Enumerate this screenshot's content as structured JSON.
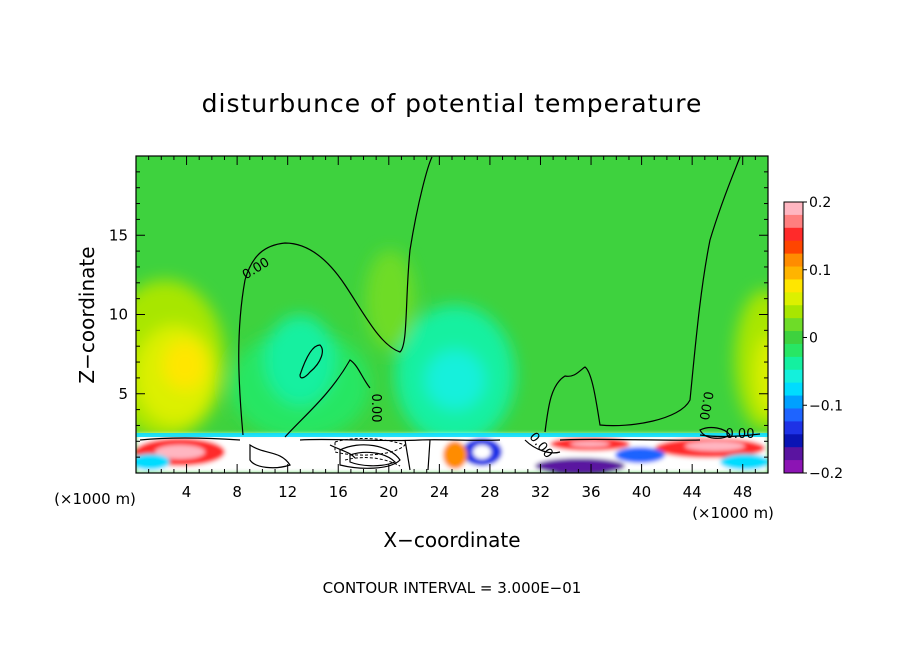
{
  "chart_data": {
    "type": "heatmap",
    "title": "disturbunce of potential temperature",
    "xlabel": "X−coordinate",
    "ylabel": "Z−coordinate",
    "x_unit_left": "(×1000 m)",
    "x_unit_right": "(×1000 m)",
    "footer": "CONTOUR INTERVAL = 3.000E−01",
    "xlim": [
      0,
      50
    ],
    "ylim": [
      0,
      20
    ],
    "x_ticks": [
      4,
      8,
      12,
      16,
      20,
      24,
      28,
      32,
      36,
      40,
      44,
      48
    ],
    "x_tick_labels": [
      "4",
      "8",
      "12",
      "16",
      "20",
      "24",
      "28",
      "32",
      "36",
      "40",
      "44",
      "48"
    ],
    "y_ticks": [
      5,
      10,
      15
    ],
    "y_tick_labels": [
      "5",
      "10",
      "15"
    ],
    "colorbar": {
      "min": -0.2,
      "max": 0.2,
      "ticks": [
        0.2,
        0.1,
        0,
        -0.1,
        -0.2
      ],
      "tick_labels": [
        "0.2",
        "0.1",
        "0",
        "−0.1",
        "−0.2"
      ],
      "colors": [
        "#ffb6c1",
        "#ff7f7f",
        "#ff2a2a",
        "#ff4500",
        "#ff8c00",
        "#ffb400",
        "#ffe600",
        "#dcf000",
        "#a8e600",
        "#6edc28",
        "#3ed23e",
        "#28e664",
        "#14f0a0",
        "#14f0dc",
        "#00dcff",
        "#00a0ff",
        "#1e64ff",
        "#1e32e6",
        "#0a14b4",
        "#5a14a0",
        "#8c14b4"
      ]
    },
    "contour_labels": [
      "0.00",
      "0.00",
      "0.00",
      "0.00",
      "0.00",
      "0.00"
    ],
    "field_regions": [
      {
        "name": "background",
        "value": 0.01
      },
      {
        "name": "left-warm-anomaly",
        "x": 4,
        "z": 7.5,
        "value": 0.06
      },
      {
        "name": "central-cool-column",
        "x": 15,
        "z": 5,
        "value": -0.02
      },
      {
        "name": "cool-bubble-27",
        "x": 27,
        "z": 5.5,
        "value": -0.04
      },
      {
        "name": "right-warm-anomaly",
        "x": 49,
        "z": 7,
        "value": 0.05
      },
      {
        "name": "surface-warm-left",
        "x": 4,
        "z": 1,
        "value": 0.15
      },
      {
        "name": "surface-warm-36",
        "x": 36,
        "z": 2,
        "value": 0.16
      },
      {
        "name": "surface-warm-46",
        "x": 46,
        "z": 2,
        "value": 0.17
      },
      {
        "name": "surface-cool-28",
        "x": 28,
        "z": 1,
        "value": -0.15
      },
      {
        "name": "surface-cool-34",
        "x": 34,
        "z": 0.5,
        "value": -0.19
      }
    ]
  }
}
